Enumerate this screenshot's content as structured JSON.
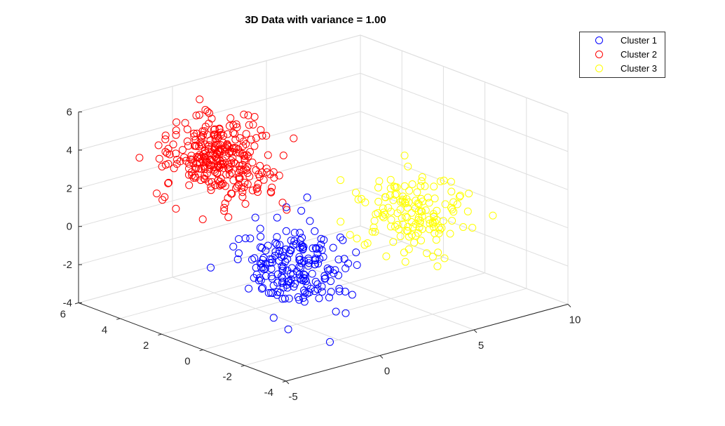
{
  "chart_data": {
    "type": "scatter",
    "title": "3D Data with variance = 1.00",
    "xlabel": "",
    "ylabel": "",
    "zlabel": "",
    "xlim": [
      -5,
      10
    ],
    "ylim": [
      -4,
      6
    ],
    "zlim": [
      -4,
      6
    ],
    "x_ticks": [
      "-5",
      "0",
      "5",
      "10"
    ],
    "y_ticks": [
      "-4",
      "-2",
      "0",
      "2",
      "4",
      "6"
    ],
    "z_ticks": [
      "-4",
      "-2",
      "0",
      "2",
      "4",
      "6"
    ],
    "grid": true,
    "legend_position": "top-right",
    "series": [
      {
        "name": "Cluster 1",
        "color": "#0000ff",
        "center": [
          0,
          0,
          -1
        ],
        "spread": 1.0,
        "points": 200
      },
      {
        "name": "Cluster 2",
        "color": "#ff0000",
        "center": [
          0,
          4,
          3
        ],
        "spread": 1.0,
        "points": 300
      },
      {
        "name": "Cluster 3",
        "color": "#ffff00",
        "center": [
          6,
          0,
          0
        ],
        "spread": 1.0,
        "points": 150
      }
    ]
  }
}
